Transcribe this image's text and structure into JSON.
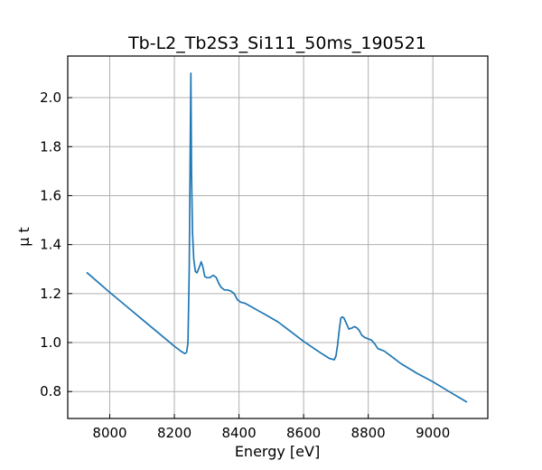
{
  "chart_data": {
    "type": "line",
    "title": "Tb-L2_Tb2S3_Si111_50ms_190521",
    "xlabel": "Energy [eV]",
    "ylabel": "μ t",
    "xlim": [
      7870,
      9170
    ],
    "ylim": [
      0.69,
      2.17
    ],
    "xticks": [
      8000,
      8200,
      8400,
      8600,
      8800,
      9000
    ],
    "yticks": [
      0.8,
      1.0,
      1.2,
      1.4,
      1.6,
      1.8,
      2.0
    ],
    "xtick_labels": [
      "8000",
      "8200",
      "8400",
      "8600",
      "8800",
      "9000"
    ],
    "ytick_labels": [
      "0.8",
      "1.0",
      "1.2",
      "1.4",
      "1.6",
      "1.8",
      "2.0"
    ],
    "grid": true,
    "colors": {
      "line": "#1f77b4",
      "grid": "#b0b0b0",
      "axes": "#000000"
    },
    "series": [
      {
        "x": [
          7930,
          8000,
          8050,
          8100,
          8150,
          8200,
          8220,
          8232,
          8238,
          8242,
          8246,
          8249,
          8251,
          8253,
          8256,
          8260,
          8265,
          8270,
          8278,
          8283,
          8288,
          8294,
          8300,
          8310,
          8320,
          8330,
          8338,
          8345,
          8355,
          8365,
          8375,
          8385,
          8395,
          8405,
          8420,
          8440,
          8460,
          8480,
          8500,
          8520,
          8550,
          8600,
          8650,
          8680,
          8695,
          8700,
          8705,
          8710,
          8715,
          8720,
          8725,
          8730,
          8740,
          8750,
          8758,
          8765,
          8772,
          8780,
          8790,
          8800,
          8810,
          8820,
          8830,
          8840,
          8850,
          8860,
          8880,
          8900,
          8950,
          9000,
          9050,
          9104
        ],
        "y": [
          1.285,
          1.205,
          1.15,
          1.095,
          1.04,
          0.985,
          0.965,
          0.955,
          0.96,
          1.0,
          1.3,
          1.8,
          2.1,
          1.7,
          1.45,
          1.34,
          1.29,
          1.285,
          1.31,
          1.33,
          1.31,
          1.27,
          1.265,
          1.265,
          1.275,
          1.265,
          1.24,
          1.225,
          1.215,
          1.215,
          1.21,
          1.2,
          1.175,
          1.165,
          1.16,
          1.145,
          1.13,
          1.115,
          1.1,
          1.085,
          1.055,
          1.005,
          0.96,
          0.935,
          0.93,
          0.945,
          0.99,
          1.05,
          1.1,
          1.105,
          1.1,
          1.085,
          1.055,
          1.06,
          1.065,
          1.06,
          1.05,
          1.03,
          1.02,
          1.015,
          1.01,
          0.995,
          0.975,
          0.97,
          0.965,
          0.955,
          0.935,
          0.915,
          0.875,
          0.84,
          0.8,
          0.758
        ]
      }
    ]
  }
}
